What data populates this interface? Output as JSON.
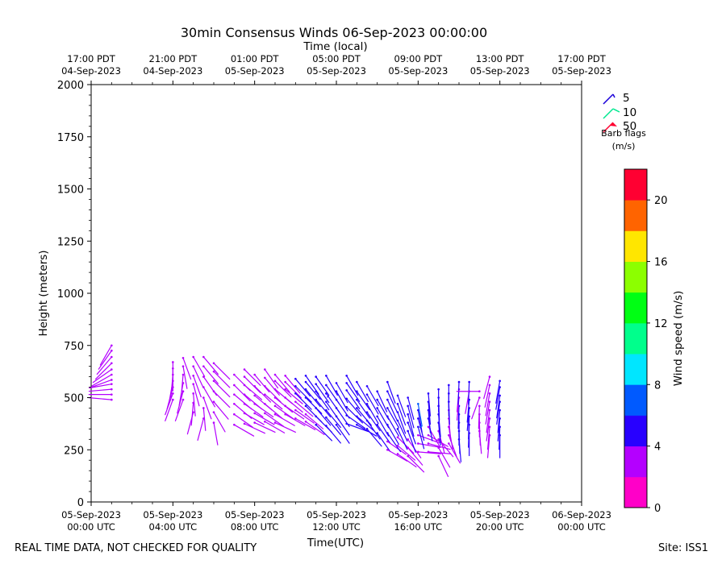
{
  "chart_data": {
    "type": "barb",
    "title": "30min Consensus Winds 06-Sep-2023 00:00:00",
    "top_axis_label": "Time (local)",
    "xlabel": "Time(UTC)",
    "ylabel": "Height (meters)",
    "xlim_hours": [
      0,
      24
    ],
    "ylim": [
      0,
      2000
    ],
    "y_ticks": [
      0,
      250,
      500,
      750,
      1000,
      1250,
      1500,
      1750,
      2000
    ],
    "x_ticks": [
      {
        "hour": 0,
        "line1": "05-Sep-2023",
        "line2": "00:00 UTC"
      },
      {
        "hour": 4,
        "line1": "05-Sep-2023",
        "line2": "04:00 UTC"
      },
      {
        "hour": 8,
        "line1": "05-Sep-2023",
        "line2": "08:00 UTC"
      },
      {
        "hour": 12,
        "line1": "05-Sep-2023",
        "line2": "12:00 UTC"
      },
      {
        "hour": 16,
        "line1": "05-Sep-2023",
        "line2": "16:00 UTC"
      },
      {
        "hour": 20,
        "line1": "05-Sep-2023",
        "line2": "20:00 UTC"
      },
      {
        "hour": 24,
        "line1": "06-Sep-2023",
        "line2": "00:00 UTC"
      }
    ],
    "top_ticks": [
      {
        "hour": 0,
        "line1": "17:00 PDT",
        "line2": "04-Sep-2023"
      },
      {
        "hour": 4,
        "line1": "21:00 PDT",
        "line2": "04-Sep-2023"
      },
      {
        "hour": 8,
        "line1": "01:00 PDT",
        "line2": "05-Sep-2023"
      },
      {
        "hour": 12,
        "line1": "05:00 PDT",
        "line2": "05-Sep-2023"
      },
      {
        "hour": 16,
        "line1": "09:00 PDT",
        "line2": "05-Sep-2023"
      },
      {
        "hour": 20,
        "line1": "13:00 PDT",
        "line2": "05-Sep-2023"
      },
      {
        "hour": 24,
        "line1": "17:00 PDT",
        "line2": "05-Sep-2023"
      }
    ],
    "barb_legend": {
      "entries": [
        {
          "label": "5",
          "color": "#1a00d9"
        },
        {
          "label": "10",
          "color": "#00e890"
        },
        {
          "label": "50",
          "color": "#ff0030"
        }
      ],
      "title1": "Barb flags",
      "title2": "(m/s)"
    },
    "colorbar": {
      "label": "Wind speed (m/s)",
      "min": 0,
      "max": 22,
      "ticks": [
        0,
        4,
        8,
        12,
        16,
        20
      ],
      "colors": [
        "#ff00c8",
        "#b400ff",
        "#2800ff",
        "#005aff",
        "#00e6ff",
        "#00ff8c",
        "#00ff14",
        "#8cff00",
        "#ffe600",
        "#ff6400",
        "#ff0032"
      ]
    },
    "series": [
      {
        "hour": 1.0,
        "heights": [
          490,
          515,
          540,
          565,
          585,
          610,
          635,
          665,
          695,
          725,
          750
        ],
        "speeds": [
          2.2,
          2.2,
          2.1,
          2.1,
          2.0,
          2.1,
          2.2,
          2.3,
          2.4,
          2.5,
          2.6
        ],
        "dirs": [
          275,
          270,
          265,
          260,
          250,
          240,
          235,
          225,
          220,
          215,
          210
        ]
      },
      {
        "hour": 4.0,
        "heights": [
          490,
          520,
          550,
          580,
          610,
          640,
          670
        ],
        "speeds": [
          2.2,
          2.2,
          2.2,
          2.2,
          2.2,
          2.1,
          2.1
        ],
        "dirs": [
          200,
          200,
          195,
          190,
          185,
          180,
          180
        ]
      },
      {
        "hour": 4.5,
        "heights": [
          490,
          530,
          570,
          610,
          650,
          690
        ],
        "speeds": [
          2.4,
          2.4,
          2.4,
          2.4,
          2.4,
          2.3
        ],
        "dirs": [
          200,
          195,
          190,
          185,
          170,
          160
        ]
      },
      {
        "hour": 5.0,
        "heights": [
          430,
          475,
          520,
          565,
          605,
          650,
          695
        ],
        "speeds": [
          2.4,
          2.6,
          2.6,
          2.6,
          2.5,
          2.5,
          2.4
        ],
        "dirs": [
          195,
          185,
          175,
          165,
          160,
          155,
          150
        ]
      },
      {
        "hour": 5.5,
        "heights": [
          400,
          450,
          500,
          550,
          600,
          650,
          695
        ],
        "speeds": [
          2.4,
          2.6,
          3.0,
          3.2,
          3.0,
          2.8,
          2.6
        ],
        "dirs": [
          195,
          175,
          160,
          150,
          145,
          140,
          140
        ]
      },
      {
        "hour": 6.0,
        "heights": [
          380,
          430,
          480,
          530,
          580,
          625,
          665
        ],
        "speeds": [
          2.8,
          3.0,
          3.2,
          3.2,
          3.2,
          3.0,
          2.8
        ],
        "dirs": [
          170,
          150,
          140,
          135,
          135,
          135,
          135
        ]
      },
      {
        "hour": 7.0,
        "heights": [
          370,
          420,
          470,
          515,
          560,
          610
        ],
        "speeds": [
          3.2,
          3.5,
          3.4,
          3.3,
          3.2,
          3.0
        ],
        "dirs": [
          120,
          125,
          130,
          130,
          135,
          135
        ]
      },
      {
        "hour": 7.5,
        "heights": [
          375,
          425,
          470,
          515,
          560,
          600,
          635
        ],
        "speeds": [
          3.2,
          3.6,
          3.6,
          3.5,
          3.4,
          3.2,
          3.0
        ],
        "dirs": [
          115,
          120,
          125,
          130,
          130,
          135,
          135
        ]
      },
      {
        "hour": 8.0,
        "heights": [
          380,
          425,
          470,
          510,
          555,
          610
        ],
        "speeds": [
          3.2,
          3.4,
          3.6,
          3.6,
          3.5,
          3.3
        ],
        "dirs": [
          115,
          120,
          125,
          130,
          135,
          140
        ]
      },
      {
        "hour": 8.5,
        "heights": [
          385,
          425,
          470,
          515,
          555,
          595,
          635
        ],
        "speeds": [
          3.0,
          3.4,
          3.6,
          3.6,
          3.5,
          3.4,
          3.2
        ],
        "dirs": [
          120,
          125,
          130,
          130,
          135,
          140,
          145
        ]
      },
      {
        "hour": 9.0,
        "heights": [
          380,
          420,
          460,
          500,
          540,
          580,
          610
        ],
        "speeds": [
          3.2,
          3.5,
          3.6,
          3.6,
          3.5,
          3.4,
          3.2
        ],
        "dirs": [
          115,
          120,
          125,
          130,
          130,
          135,
          140
        ]
      },
      {
        "hour": 9.5,
        "heights": [
          420,
          460,
          500,
          540,
          575,
          605
        ],
        "speeds": [
          3.3,
          3.5,
          3.6,
          3.6,
          3.4,
          3.2
        ],
        "dirs": [
          120,
          125,
          130,
          130,
          135,
          140
        ]
      },
      {
        "hour": 10.0,
        "heights": [
          400,
          440,
          480,
          520,
          555,
          590
        ],
        "speeds": [
          3.3,
          3.6,
          3.8,
          4.1,
          4.2,
          4.2
        ],
        "dirs": [
          120,
          125,
          130,
          135,
          135,
          140
        ]
      },
      {
        "hour": 10.5,
        "heights": [
          385,
          420,
          460,
          500,
          540,
          575,
          605
        ],
        "speeds": [
          3.4,
          3.8,
          4.2,
          4.4,
          4.6,
          4.8,
          4.8
        ],
        "dirs": [
          125,
          130,
          135,
          135,
          140,
          140,
          145
        ]
      },
      {
        "hour": 11.0,
        "heights": [
          370,
          410,
          450,
          490,
          530,
          565,
          600
        ],
        "speeds": [
          4.6,
          4.7,
          4.8,
          4.8,
          4.8,
          4.9,
          5.0
        ],
        "dirs": [
          135,
          135,
          140,
          140,
          145,
          145,
          145
        ]
      },
      {
        "hour": 11.5,
        "heights": [
          365,
          405,
          440,
          480,
          520,
          560,
          605
        ],
        "speeds": [
          4.6,
          4.8,
          4.8,
          4.8,
          4.8,
          4.8,
          4.8
        ],
        "dirs": [
          140,
          140,
          140,
          145,
          145,
          145,
          150
        ]
      },
      {
        "hour": 12.0,
        "heights": [
          370,
          410,
          450,
          490,
          530,
          570
        ],
        "speeds": [
          4.6,
          4.7,
          4.8,
          4.8,
          4.8,
          4.8
        ],
        "dirs": [
          145,
          145,
          145,
          145,
          150,
          150
        ]
      },
      {
        "hour": 12.5,
        "heights": [
          375,
          415,
          455,
          495,
          535,
          570,
          605
        ],
        "speeds": [
          4.4,
          4.6,
          4.6,
          4.8,
          4.8,
          4.8,
          4.8
        ],
        "dirs": [
          110,
          125,
          135,
          140,
          145,
          145,
          150
        ]
      },
      {
        "hour": 13.0,
        "heights": [
          370,
          410,
          450,
          490,
          530,
          575
        ],
        "speeds": [
          4.6,
          4.8,
          4.8,
          4.8,
          4.8,
          4.8
        ],
        "dirs": [
          120,
          130,
          140,
          145,
          145,
          150
        ]
      },
      {
        "hour": 13.5,
        "heights": [
          350,
          390,
          430,
          470,
          515,
          555
        ],
        "speeds": [
          4.6,
          4.8,
          4.8,
          4.8,
          4.8,
          4.8
        ],
        "dirs": [
          140,
          145,
          145,
          150,
          150,
          150
        ]
      },
      {
        "hour": 14.0,
        "heights": [
          330,
          370,
          410,
          450,
          490,
          530
        ],
        "speeds": [
          4.6,
          4.8,
          4.8,
          4.8,
          4.8,
          4.8
        ],
        "dirs": [
          145,
          145,
          150,
          150,
          150,
          155
        ]
      },
      {
        "hour": 14.5,
        "heights": [
          250,
          290,
          330,
          370,
          410,
          450,
          490,
          530,
          575
        ],
        "speeds": [
          3.2,
          3.4,
          4.6,
          4.8,
          4.8,
          4.8,
          4.8,
          4.8,
          4.8
        ],
        "dirs": [
          120,
          125,
          145,
          150,
          150,
          150,
          155,
          155,
          160
        ]
      },
      {
        "hour": 15.0,
        "heights": [
          230,
          270,
          310,
          350,
          390,
          430,
          470,
          510
        ],
        "speeds": [
          3.2,
          3.4,
          3.6,
          4.8,
          4.8,
          4.8,
          4.8,
          4.8
        ],
        "dirs": [
          125,
          130,
          135,
          155,
          155,
          160,
          160,
          160
        ]
      },
      {
        "hour": 15.5,
        "heights": [
          220,
          260,
          300,
          340,
          380,
          420,
          460,
          500
        ],
        "speeds": [
          3.4,
          3.6,
          3.4,
          4.8,
          4.8,
          4.8,
          4.8,
          4.8
        ],
        "dirs": [
          135,
          140,
          145,
          160,
          160,
          165,
          165,
          165
        ]
      },
      {
        "hour": 16.0,
        "heights": [
          240,
          280,
          320,
          360,
          400,
          440,
          470
        ],
        "speeds": [
          3.6,
          3.4,
          3.6,
          4.8,
          4.8,
          4.8,
          7.4
        ],
        "dirs": [
          95,
          100,
          110,
          165,
          165,
          170,
          170
        ]
      },
      {
        "hour": 16.5,
        "heights": [
          240,
          280,
          320,
          360,
          400,
          440,
          480,
          520
        ],
        "speeds": [
          3.6,
          3.4,
          3.4,
          3.6,
          4.8,
          4.8,
          4.8,
          4.8
        ],
        "dirs": [
          95,
          105,
          120,
          150,
          170,
          175,
          175,
          175
        ]
      },
      {
        "hour": 17.0,
        "heights": [
          220,
          260,
          300,
          340,
          380,
          420,
          460,
          500,
          540
        ],
        "speeds": [
          3.6,
          3.6,
          3.4,
          3.2,
          4.8,
          4.8,
          4.8,
          4.8,
          4.8
        ],
        "dirs": [
          155,
          150,
          140,
          165,
          175,
          175,
          178,
          178,
          180
        ]
      },
      {
        "hour": 17.5,
        "heights": [
          280,
          320,
          360,
          400,
          440,
          480,
          520,
          560
        ],
        "speeds": [
          3.4,
          3.2,
          3.4,
          3.0,
          3.2,
          4.8,
          4.8,
          4.8
        ],
        "dirs": [
          150,
          160,
          170,
          175,
          178,
          178,
          180,
          180
        ]
      },
      {
        "hour": 18.0,
        "heights": [
          300,
          340,
          380,
          420,
          460,
          500,
          540,
          575
        ],
        "speeds": [
          4.8,
          4.8,
          4.8,
          4.8,
          4.8,
          3.2,
          3.0,
          4.8
        ],
        "dirs": [
          175,
          178,
          180,
          180,
          182,
          185,
          185,
          182
        ]
      },
      {
        "hour": 18.5,
        "heights": [
          330,
          370,
          410,
          450,
          490,
          530,
          575
        ],
        "speeds": [
          4.8,
          4.8,
          4.8,
          4.8,
          4.8,
          3.0,
          4.8
        ],
        "dirs": [
          180,
          182,
          182,
          185,
          185,
          190,
          182
        ]
      },
      {
        "hour": 19.0,
        "heights": [
          340,
          380,
          420,
          460,
          500,
          530
        ],
        "speeds": [
          3.2,
          3.0,
          3.2,
          3.0,
          3.0,
          2.8
        ],
        "dirs": [
          175,
          178,
          180,
          182,
          200,
          270
        ]
      },
      {
        "hour": 19.5,
        "heights": [
          320,
          360,
          400,
          440,
          480,
          520,
          560,
          600
        ],
        "speeds": [
          3.0,
          3.2,
          3.0,
          3.2,
          3.2,
          3.0,
          3.0,
          2.8
        ],
        "dirs": [
          185,
          185,
          188,
          188,
          190,
          190,
          192,
          195
        ]
      },
      {
        "hour": 20.0,
        "heights": [
          320,
          360,
          400,
          440,
          480,
          510,
          550,
          580
        ],
        "speeds": [
          4.8,
          4.8,
          4.8,
          4.8,
          4.8,
          4.8,
          4.8,
          4.8
        ],
        "dirs": [
          180,
          182,
          185,
          185,
          188,
          188,
          190,
          190
        ]
      }
    ]
  },
  "footer": {
    "left": "REAL TIME DATA, NOT CHECKED FOR QUALITY",
    "right": "Site: ISS1"
  }
}
